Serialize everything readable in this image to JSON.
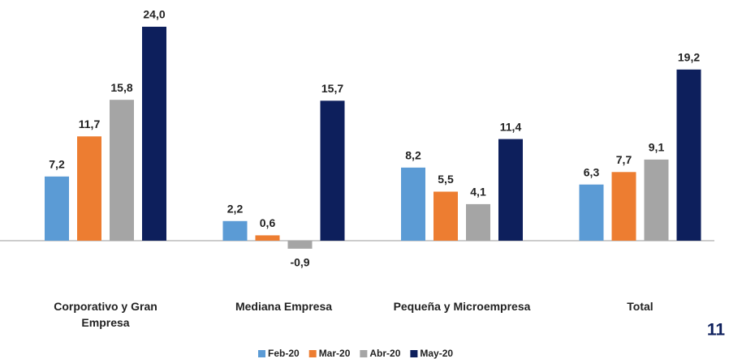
{
  "chart_data": {
    "type": "bar",
    "categories": [
      "Corporativo y Gran Empresa",
      "Mediana Empresa",
      "Pequeña y Microempresa",
      "Total"
    ],
    "series": [
      {
        "name": "Feb-20",
        "color": "#5b9bd5",
        "values": [
          7.2,
          2.2,
          8.2,
          6.3
        ],
        "value_labels": [
          "7,2",
          "2,2",
          "8,2",
          "6,3"
        ]
      },
      {
        "name": "Mar-20",
        "color": "#ed7d31",
        "values": [
          11.7,
          0.6,
          5.5,
          7.7
        ],
        "value_labels": [
          "11,7",
          "0,6",
          "5,5",
          "7,7"
        ]
      },
      {
        "name": "Abr-20",
        "color": "#a5a5a5",
        "values": [
          15.8,
          -0.9,
          4.1,
          9.1
        ],
        "value_labels": [
          "15,8",
          "-0,9",
          "4,1",
          "9,1"
        ]
      },
      {
        "name": "May-20",
        "color": "#0d1f5c",
        "values": [
          24.0,
          15.7,
          11.4,
          19.2
        ],
        "value_labels": [
          "24,0",
          "15,7",
          "11,4",
          "19,2"
        ]
      }
    ],
    "annotations": [
      "11"
    ]
  }
}
